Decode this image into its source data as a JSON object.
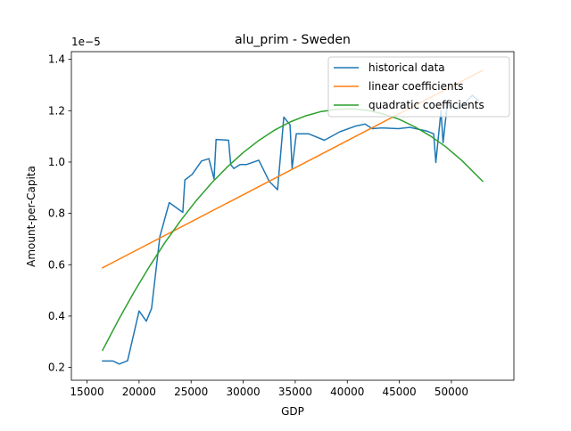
{
  "chart_data": {
    "type": "line",
    "title": "alu_prim - Sweden",
    "xlabel": "GDP",
    "ylabel": "Amount-per-Capita",
    "y_offset_label": "1e−5",
    "xlim": [
      13500,
      56000
    ],
    "ylim": [
      0.15,
      1.43
    ],
    "xticks": [
      15000,
      20000,
      25000,
      30000,
      35000,
      40000,
      45000,
      50000
    ],
    "xtick_labels": [
      "15000",
      "20000",
      "25000",
      "30000",
      "35000",
      "40000",
      "45000",
      "50000"
    ],
    "yticks": [
      0.2,
      0.4,
      0.6,
      0.8,
      1.0,
      1.2,
      1.4
    ],
    "ytick_labels": [
      "0.2",
      "0.4",
      "0.6",
      "0.8",
      "1.0",
      "1.2",
      "1.4"
    ],
    "grid": false,
    "legend_position": "top-right",
    "series": [
      {
        "name": "historical data",
        "color": "#1f77b4",
        "x": [
          16500,
          17500,
          18100,
          18900,
          20000,
          20700,
          21200,
          22000,
          22900,
          24200,
          24400,
          25100,
          26000,
          26700,
          27000,
          27200,
          27400,
          28600,
          28800,
          29100,
          29700,
          30300,
          31500,
          32500,
          33300,
          33900,
          34500,
          34700,
          35100,
          36300,
          37800,
          39300,
          40800,
          41700,
          42400,
          43300,
          44900,
          46000,
          47700,
          48300,
          48500,
          49000,
          49200,
          49600,
          50500,
          51200,
          52000,
          52600
        ],
        "y": [
          0.225,
          0.225,
          0.213,
          0.226,
          0.42,
          0.38,
          0.43,
          0.71,
          0.842,
          0.804,
          0.93,
          0.952,
          1.004,
          1.013,
          0.966,
          0.934,
          1.088,
          1.085,
          0.99,
          0.975,
          0.99,
          0.99,
          1.007,
          0.925,
          0.892,
          1.175,
          1.145,
          0.975,
          1.11,
          1.11,
          1.085,
          1.118,
          1.14,
          1.148,
          1.13,
          1.133,
          1.13,
          1.135,
          1.12,
          1.11,
          0.998,
          1.2,
          1.075,
          1.225,
          1.205,
          1.225,
          1.26,
          1.24
        ]
      },
      {
        "name": "linear coefficients",
        "color": "#ff7f0e",
        "x": [
          16500,
          53000
        ],
        "y": [
          0.588,
          1.357
        ]
      },
      {
        "name": "quadratic coefficients",
        "color": "#2ca02c",
        "x": [
          16500,
          18000,
          19500,
          21000,
          22500,
          24000,
          25500,
          27000,
          28500,
          30000,
          31500,
          33000,
          34500,
          36000,
          37500,
          39000,
          40500,
          42000,
          43500,
          45000,
          46500,
          48000,
          49500,
          51000,
          53000
        ],
        "y": [
          0.267,
          0.383,
          0.492,
          0.593,
          0.687,
          0.772,
          0.85,
          0.92,
          0.982,
          1.037,
          1.084,
          1.124,
          1.156,
          1.18,
          1.197,
          1.205,
          1.207,
          1.201,
          1.187,
          1.166,
          1.137,
          1.101,
          1.058,
          1.006,
          0.925
        ]
      }
    ]
  }
}
